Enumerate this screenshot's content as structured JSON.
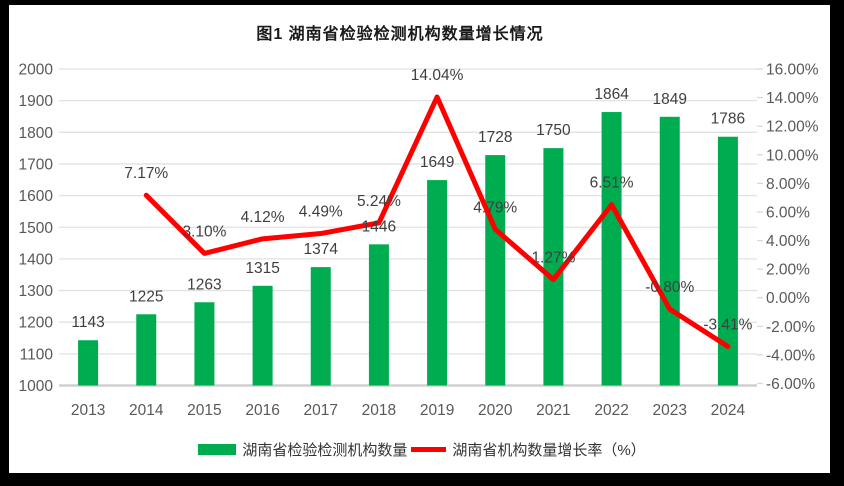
{
  "window": {
    "frame_color": "#000000",
    "background": "#ffffff"
  },
  "chart_data": {
    "type": "bar",
    "combo": "bar+line",
    "title": "图1 湖南省检验检测机构数量增长情况",
    "categories": [
      "2013",
      "2014",
      "2015",
      "2016",
      "2017",
      "2018",
      "2019",
      "2020",
      "2021",
      "2022",
      "2023",
      "2024"
    ],
    "series": [
      {
        "name": "湖南省检验检测机构数量",
        "type": "bar",
        "axis": "left",
        "values": [
          1143,
          1225,
          1263,
          1315,
          1374,
          1446,
          1649,
          1728,
          1750,
          1864,
          1849,
          1786
        ],
        "data_labels": [
          "1143",
          "1225",
          "1263",
          "1315",
          "1374",
          "1446",
          "1649",
          "1728",
          "1750",
          "1864",
          "1849",
          "1786"
        ]
      },
      {
        "name": "湖南省机构数量增长率（%）",
        "type": "line",
        "axis": "right",
        "values": [
          null,
          7.17,
          3.1,
          4.12,
          4.49,
          5.24,
          14.04,
          4.79,
          1.27,
          6.51,
          -0.8,
          -3.41
        ],
        "data_labels": [
          "",
          "7.17%",
          "3.10%",
          "4.12%",
          "4.49%",
          "5.24%",
          "14.04%",
          "4.79%",
          "1.27%",
          "6.51%",
          "-0.80%",
          "-3.41%"
        ]
      }
    ],
    "left_axis": {
      "min": 1000,
      "max": 2000,
      "step": 100,
      "tick_labels": [
        "2000",
        "1900",
        "1800",
        "1700",
        "1600",
        "1500",
        "1400",
        "1300",
        "1200",
        "1100",
        "1000"
      ]
    },
    "right_axis": {
      "min": -6,
      "max": 16,
      "step": 2,
      "tick_labels": [
        "16.00%",
        "14.00%",
        "12.00%",
        "10.00%",
        "8.00%",
        "6.00%",
        "4.00%",
        "2.00%",
        "0.00%",
        "-2.00%",
        "-4.00%",
        "-6.00%"
      ]
    },
    "grid": true,
    "legend_position": "bottom",
    "colors": {
      "bar": "#00AC50",
      "line": "#FF0000",
      "gridline": "#E2E2E2",
      "baseline": "#CFCFCF",
      "tick_mark": "#D9D9D9",
      "axis_text": "#595959",
      "data_label": "#3F3F3F",
      "title_text": "#1A1A1A"
    }
  }
}
